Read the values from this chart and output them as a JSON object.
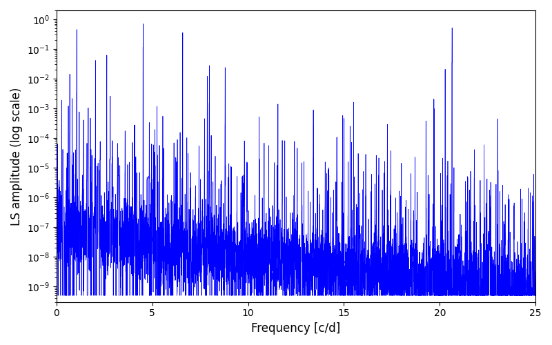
{
  "title": "",
  "xlabel": "Frequency [c/d]",
  "ylabel": "LS amplitude (log scale)",
  "xlim": [
    0,
    25
  ],
  "ylim_bottom": 3e-10,
  "ylim_top": 2.0,
  "line_color": "#0000ff",
  "line_width": 0.5,
  "background_color": "#ffffff",
  "n_points": 8000,
  "seed": 7,
  "freq_max": 25.0,
  "base_amplitude": 0.0003,
  "decay_rate": 0.18,
  "peak_amplitude": 0.7,
  "figsize": [
    8.0,
    5.0
  ],
  "dpi": 100
}
